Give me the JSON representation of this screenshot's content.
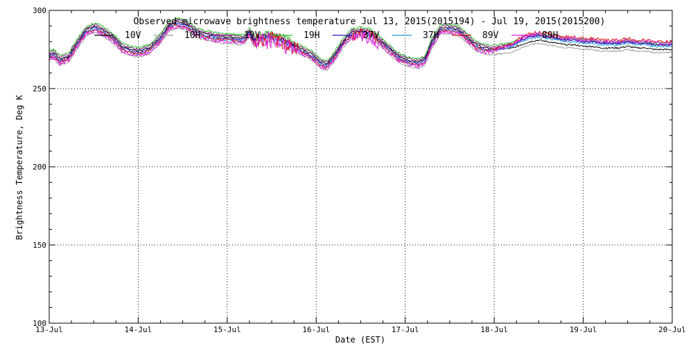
{
  "chart_data": {
    "type": "line",
    "title": "Observed microwave brightness temperature Jul 13, 2015(2015194) - Jul 19, 2015(2015200)",
    "xlabel": "Date (EST)",
    "ylabel": "Brightness Temperature, Deg K",
    "xlim": [
      0,
      7
    ],
    "ylim": [
      100,
      300
    ],
    "y_ticks": [
      100,
      150,
      200,
      250,
      300
    ],
    "x_ticks": [
      {
        "value": 0,
        "label": "13-Jul"
      },
      {
        "value": 1,
        "label": "14-Jul"
      },
      {
        "value": 2,
        "label": "15-Jul"
      },
      {
        "value": 3,
        "label": "16-Jul"
      },
      {
        "value": 4,
        "label": "17-Jul"
      },
      {
        "value": 5,
        "label": "18-Jul"
      },
      {
        "value": 6,
        "label": "19-Jul"
      },
      {
        "value": 7,
        "label": "20-Jul"
      }
    ],
    "grid": true,
    "legend_position": "top",
    "base_curve": {
      "x": [
        0.0,
        0.05,
        0.12,
        0.22,
        0.32,
        0.42,
        0.52,
        0.62,
        0.72,
        0.82,
        0.92,
        1.0,
        1.12,
        1.25,
        1.35,
        1.45,
        1.55,
        1.65,
        1.75,
        1.85,
        1.95,
        2.05,
        2.15,
        2.2,
        2.25,
        2.3,
        2.35,
        2.45,
        2.55,
        2.65,
        2.75,
        2.85,
        2.95,
        3.05,
        3.12,
        3.2,
        3.3,
        3.4,
        3.5,
        3.6,
        3.7,
        3.8,
        3.9,
        3.95,
        4.05,
        4.15,
        4.22,
        4.3,
        4.4,
        4.5,
        4.6,
        4.7,
        4.8,
        4.9,
        5.0,
        5.1,
        5.2,
        5.3,
        5.4,
        5.5,
        5.6,
        5.7,
        5.8,
        5.9,
        6.0,
        6.1,
        6.2,
        6.3,
        6.4,
        6.5,
        6.6,
        6.7,
        6.8,
        6.9,
        7.0
      ],
      "y": [
        272,
        273,
        269,
        271,
        280,
        288,
        290,
        287,
        283,
        277,
        275,
        274,
        276,
        283,
        291,
        293,
        291,
        287,
        285,
        284,
        283,
        283,
        282,
        283,
        287,
        281,
        283,
        284,
        283,
        281,
        278,
        275,
        272,
        267,
        266,
        271,
        280,
        286,
        287,
        286,
        282,
        277,
        272,
        270,
        268,
        267,
        269,
        280,
        289,
        289,
        288,
        283,
        278,
        276,
        276,
        277,
        278,
        281,
        283,
        284,
        283,
        282,
        281,
        281,
        280,
        280,
        279,
        279,
        279,
        280,
        279,
        279,
        278,
        278,
        278
      ]
    },
    "series": [
      {
        "name": "10V",
        "color": "#000000",
        "offset": 0,
        "late_offset": -3,
        "noise": 0.5
      },
      {
        "name": "10H",
        "color": "#9b9b9b",
        "offset": -4,
        "late_offset": -5,
        "noise": 0.5
      },
      {
        "name": "19V",
        "color": "#8b1a8b",
        "offset": 1,
        "late_offset": 0,
        "noise": 0.6
      },
      {
        "name": "19H",
        "color": "#2dbb2d",
        "offset": 2,
        "late_offset": 1,
        "noise": 0.7
      },
      {
        "name": "37V",
        "color": "#1a1acc",
        "offset": -1,
        "late_offset": 0,
        "noise": 0.6
      },
      {
        "name": "37H",
        "color": "#1a9adc",
        "offset": -2,
        "late_offset": -1,
        "noise": 0.6
      },
      {
        "name": "89V",
        "color": "#dd1a1a",
        "offset": -2,
        "late_offset": 2,
        "noise": 1.0
      },
      {
        "name": "89H",
        "color": "#dd1add",
        "offset": -3,
        "late_offset": 1,
        "noise": 1.2
      }
    ]
  }
}
